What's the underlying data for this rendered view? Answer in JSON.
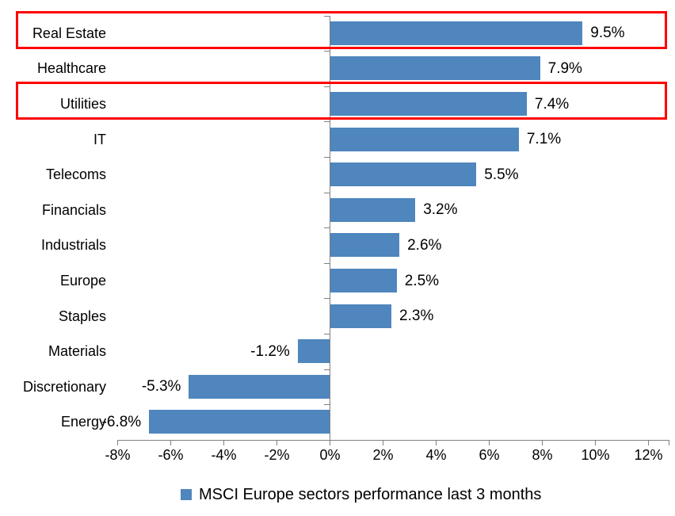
{
  "chart_data": {
    "type": "bar",
    "orientation": "horizontal",
    "legend": "MSCI Europe sectors performance last 3 months",
    "legend_position": "bottom",
    "categories": [
      "Real Estate",
      "Healthcare",
      "Utilities",
      "IT",
      "Telecoms",
      "Financials",
      "Industrials",
      "Europe",
      "Staples",
      "Materials",
      "Discretionary",
      "Energy"
    ],
    "values": [
      9.5,
      7.9,
      7.4,
      7.1,
      5.5,
      3.2,
      2.6,
      2.5,
      2.3,
      -1.2,
      -5.3,
      -6.8
    ],
    "value_labels": [
      "9.5%",
      "7.9%",
      "7.4%",
      "7.1%",
      "5.5%",
      "3.2%",
      "2.6%",
      "2.5%",
      "2.3%",
      "-1.2%",
      "-5.3%",
      "-6.8%"
    ],
    "xlim": [
      -8,
      12.8
    ],
    "x_tick_values": [
      -8,
      -6,
      -4,
      -2,
      0,
      2,
      4,
      6,
      8,
      10,
      12
    ],
    "x_tick_labels": [
      "-8%",
      "-6%",
      "-4%",
      "-2%",
      "0%",
      "2%",
      "4%",
      "6%",
      "8%",
      "10%",
      "12%"
    ],
    "grid": false,
    "bar_color": "#4e86bd",
    "axis_color": "#808080",
    "text_color": "#000000",
    "highlight_color": "#fe0000",
    "highlighted_categories": [
      "Real Estate",
      "Utilities"
    ]
  }
}
